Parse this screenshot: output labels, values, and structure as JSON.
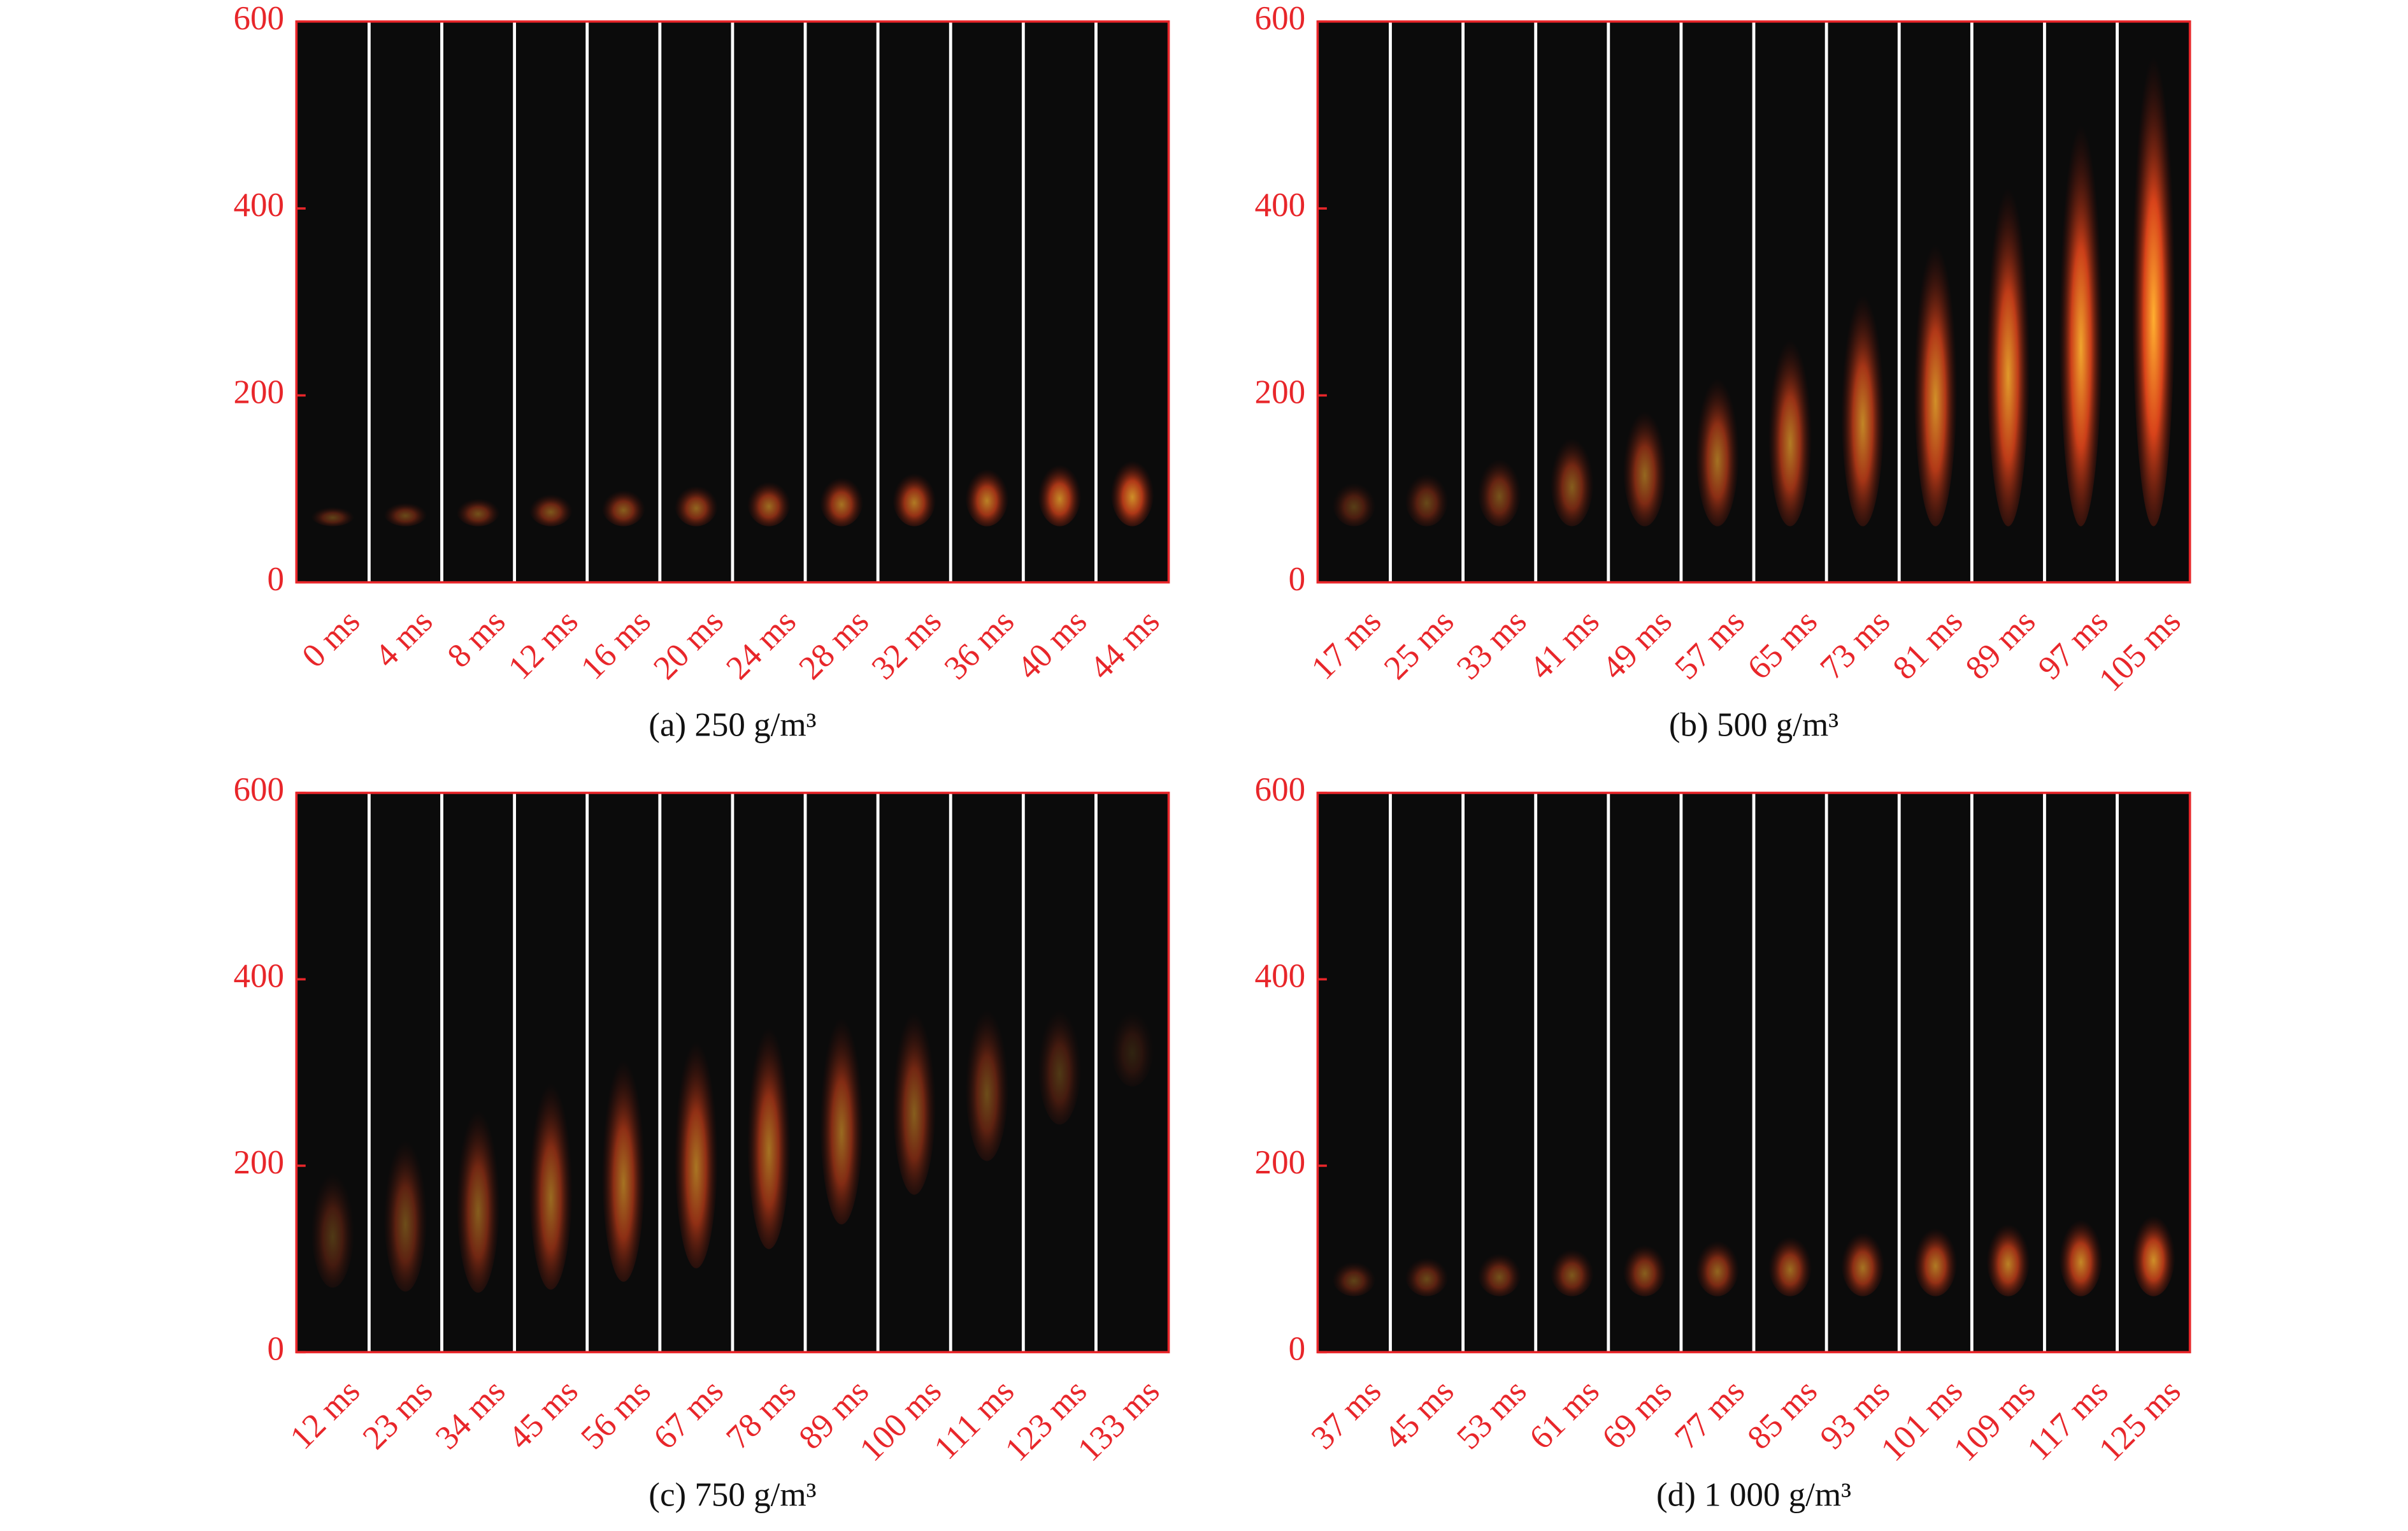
{
  "chart_data": [
    {
      "type": "image-strip",
      "caption": "(a) 250 g/m³",
      "categories": [
        "0 ms",
        "4 ms",
        "8 ms",
        "12 ms",
        "16 ms",
        "20 ms",
        "24 ms",
        "28 ms",
        "32 ms",
        "36 ms",
        "40 ms",
        "44 ms"
      ],
      "ylim": [
        0,
        600
      ],
      "yticks": [
        0,
        200,
        400,
        600
      ],
      "color": "#e8262a"
    },
    {
      "type": "image-strip",
      "caption": "(b) 500 g/m³",
      "categories": [
        "17 ms",
        "25 ms",
        "33 ms",
        "41 ms",
        "49 ms",
        "57 ms",
        "65 ms",
        "73 ms",
        "81 ms",
        "89 ms",
        "97 ms",
        "105 ms"
      ],
      "ylim": [
        0,
        600
      ],
      "yticks": [
        0,
        200,
        400,
        600
      ],
      "color": "#e8262a"
    },
    {
      "type": "image-strip",
      "caption": "(c) 750 g/m³",
      "categories": [
        "12 ms",
        "23 ms",
        "34 ms",
        "45 ms",
        "56 ms",
        "67 ms",
        "78 ms",
        "89 ms",
        "100 ms",
        "111 ms",
        "123 ms",
        "133 ms"
      ],
      "ylim": [
        0,
        600
      ],
      "yticks": [
        0,
        200,
        400,
        600
      ],
      "color": "#e8262a"
    },
    {
      "type": "image-strip",
      "caption": "(d) 1 000 g/m³",
      "categories": [
        "37 ms",
        "45 ms",
        "53 ms",
        "61 ms",
        "69 ms",
        "77 ms",
        "85 ms",
        "93 ms",
        "101 ms",
        "109 ms",
        "117 ms",
        "125 ms"
      ],
      "ylim": [
        0,
        600
      ],
      "yticks": [
        0,
        200,
        400,
        600
      ],
      "color": "#e8262a"
    }
  ]
}
